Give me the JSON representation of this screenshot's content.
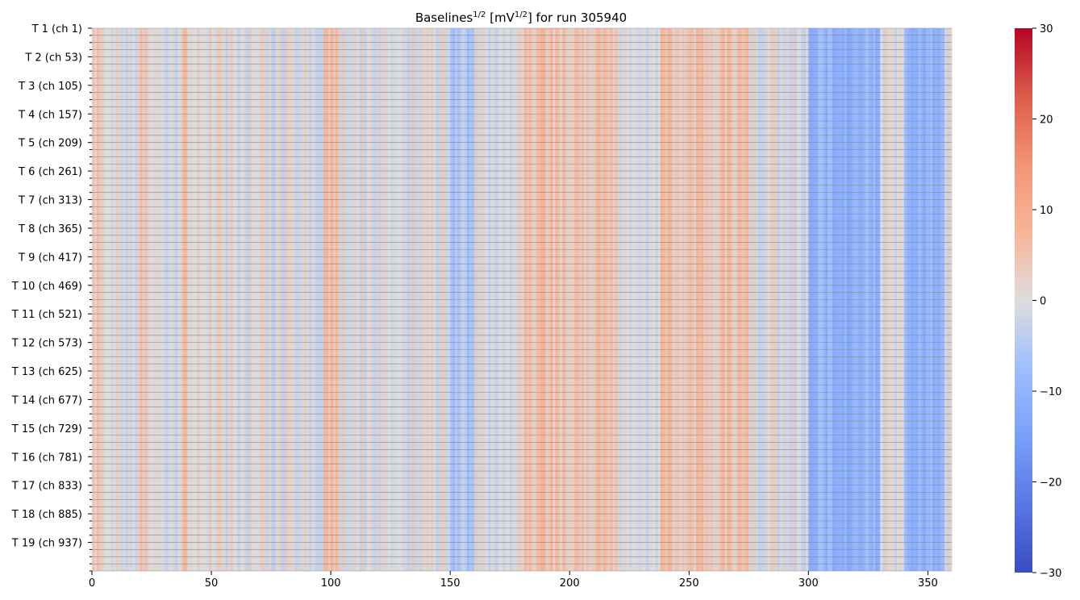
{
  "chart_data": {
    "type": "heatmap",
    "title": {
      "prefix": "Baselines",
      "sup1": "1/2",
      "mid": " [mV",
      "sup2": "1/2",
      "suffix": "] for run 305940"
    },
    "xlabel": "",
    "ylabel": "",
    "xlim": [
      0,
      360
    ],
    "x_ticks": [
      0,
      50,
      100,
      150,
      200,
      250,
      300,
      350
    ],
    "rows": 19,
    "sub_ticks_per_row": 4,
    "row_labels": [
      "T 1 (ch 1)",
      "T 2 (ch 53)",
      "T 3 (ch 105)",
      "T 4 (ch 157)",
      "T 5 (ch 209)",
      "T 6 (ch 261)",
      "T 7 (ch 313)",
      "T 8 (ch 365)",
      "T 9 (ch 417)",
      "T 10 (ch 469)",
      "T 11 (ch 521)",
      "T 12 (ch 573)",
      "T 13 (ch 625)",
      "T 14 (ch 677)",
      "T 15 (ch 729)",
      "T 16 (ch 781)",
      "T 17 (ch 833)",
      "T 18 (ch 885)",
      "T 19 (ch 937)"
    ],
    "colorbar": {
      "colormap": "coolwarm",
      "vmin": -30,
      "vmax": 30,
      "ticks": [
        30,
        20,
        10,
        0,
        -10,
        -20,
        -30
      ],
      "tick_labels": [
        "30",
        "20",
        "10",
        "0",
        "−10",
        "−20",
        "−30"
      ]
    },
    "features": [
      {
        "x": [
          0,
          5
        ],
        "value": 4
      },
      {
        "x": [
          20,
          23
        ],
        "value": 3
      },
      {
        "x": [
          38,
          40
        ],
        "value": 5
      },
      {
        "x": [
          49,
          50
        ],
        "value": 4
      },
      {
        "x": [
          97,
          103
        ],
        "value": 6
      },
      {
        "x": [
          124,
          125
        ],
        "value": 3
      },
      {
        "x": [
          150,
          160
        ],
        "value": -5
      },
      {
        "x": [
          180,
          220
        ],
        "value": 5
      },
      {
        "x": [
          238,
          275
        ],
        "value": 5
      },
      {
        "x": [
          300,
          330
        ],
        "value": -10
      },
      {
        "x": [
          340,
          357
        ],
        "value": -10
      }
    ],
    "colors": {
      "cold": "#3b4cc0",
      "neutral": "#dddddd",
      "hot": "#b40426"
    }
  }
}
